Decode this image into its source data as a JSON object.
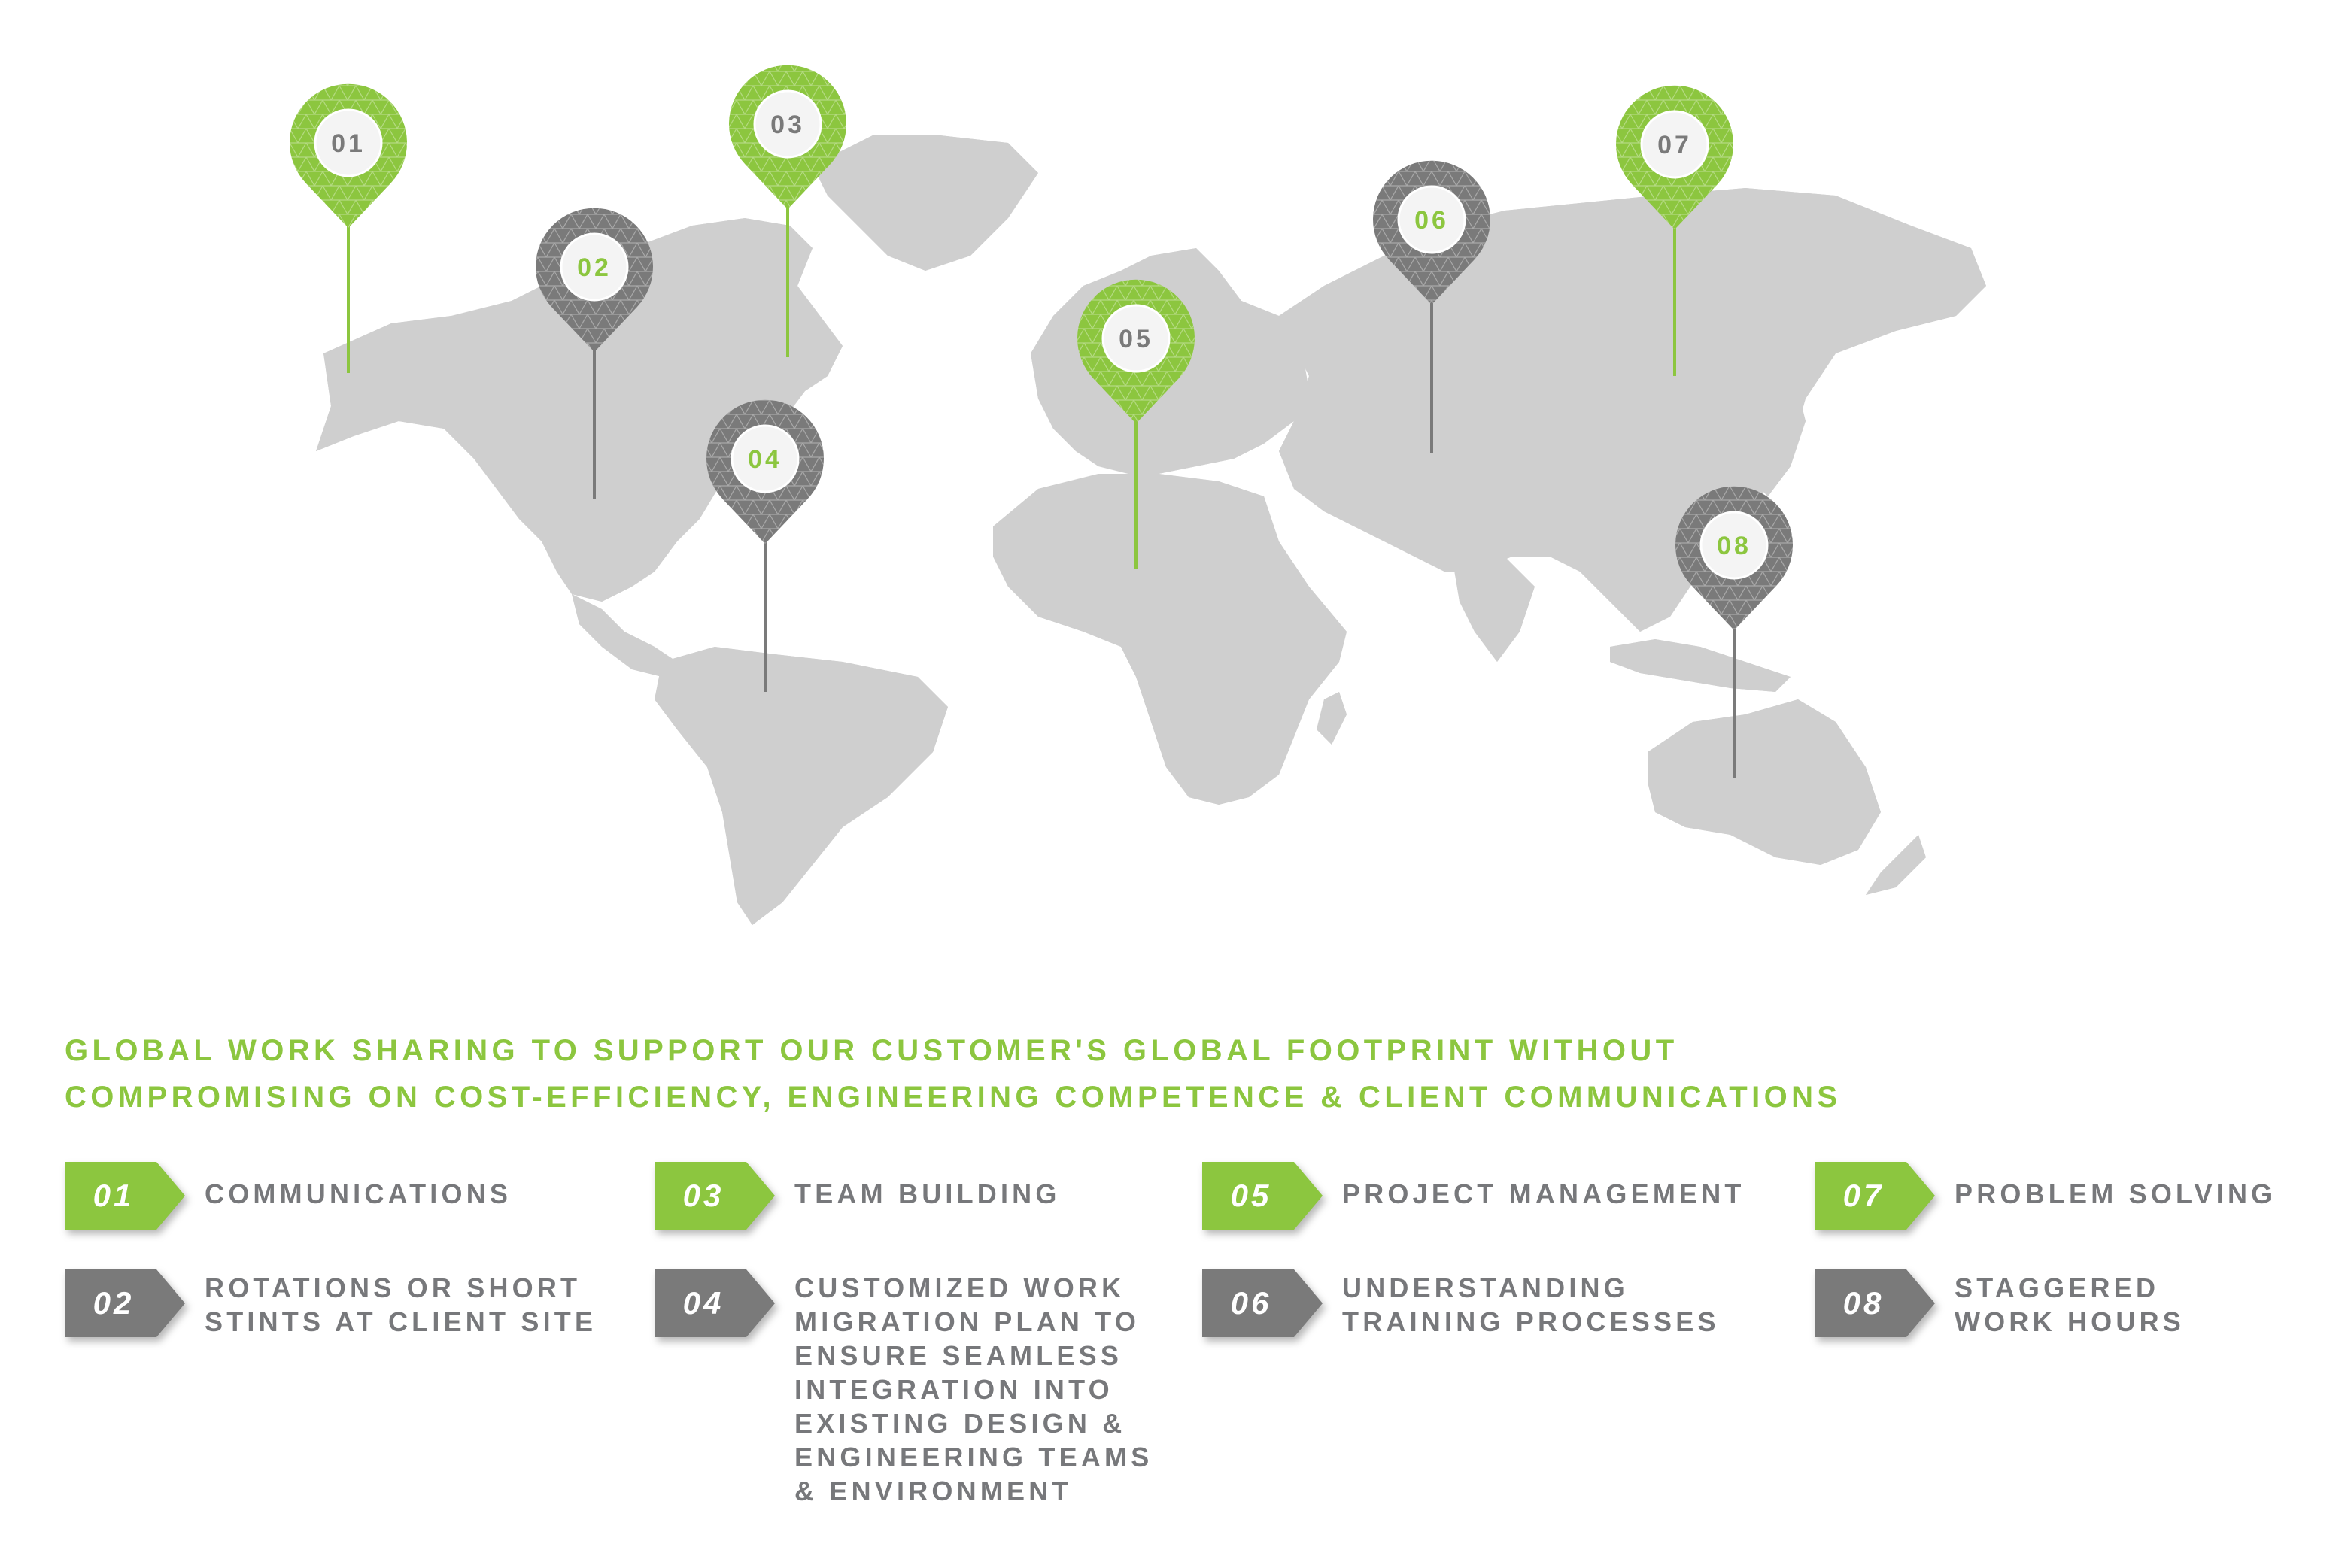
{
  "colors": {
    "green": "#8cc63f",
    "dark_gray": "#7a7a7a",
    "land": "#cfcfcf",
    "text_gray": "#77787b",
    "pin_inner": "#f4f4f4"
  },
  "map": {
    "pins": [
      {
        "number": "01",
        "color": "green"
      },
      {
        "number": "02",
        "color": "gray"
      },
      {
        "number": "03",
        "color": "green"
      },
      {
        "number": "04",
        "color": "gray"
      },
      {
        "number": "05",
        "color": "green"
      },
      {
        "number": "06",
        "color": "gray"
      },
      {
        "number": "07",
        "color": "green"
      },
      {
        "number": "08",
        "color": "gray"
      }
    ]
  },
  "headline": {
    "line1": "GLOBAL WORK SHARING TO SUPPORT OUR CUSTOMER'S GLOBAL FOOTPRINT WITHOUT",
    "line2": "COMPROMISING ON COST-EFFICIENCY, ENGINEERING COMPETENCE & CLIENT COMMUNICATIONS"
  },
  "legend": [
    {
      "number": "01",
      "label": "COMMUNICATIONS",
      "color": "green"
    },
    {
      "number": "02",
      "label": "ROTATIONS OR SHORT\nSTINTS AT CLIENT SITE",
      "color": "gray"
    },
    {
      "number": "03",
      "label": "TEAM BUILDING",
      "color": "green"
    },
    {
      "number": "04",
      "label": "CUSTOMIZED WORK\nMIGRATION PLAN TO\nENSURE SEAMLESS\nINTEGRATION INTO\nEXISTING DESIGN &\nENGINEERING TEAMS\n& ENVIRONMENT",
      "color": "gray"
    },
    {
      "number": "05",
      "label": "PROJECT MANAGEMENT",
      "color": "green"
    },
    {
      "number": "06",
      "label": "UNDERSTANDING\nTRAINING PROCESSES",
      "color": "gray"
    },
    {
      "number": "07",
      "label": "PROBLEM SOLVING",
      "color": "green"
    },
    {
      "number": "08",
      "label": "STAGGERED\nWORK HOURS",
      "color": "gray"
    }
  ]
}
